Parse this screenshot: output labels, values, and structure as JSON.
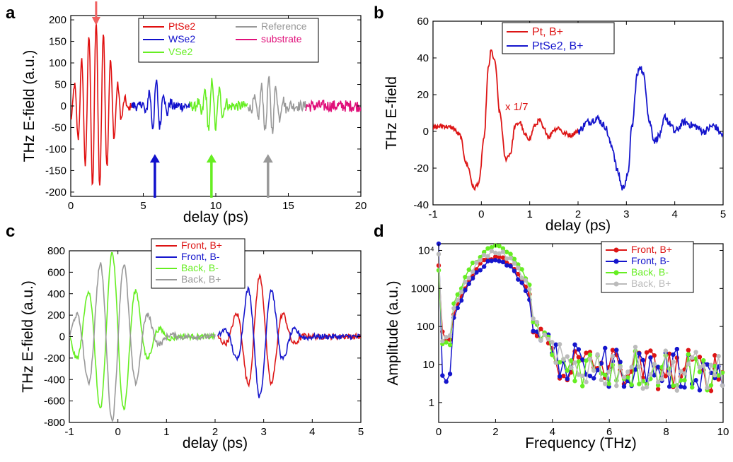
{
  "chart_data": [
    {
      "panel": "a",
      "type": "line",
      "xlabel": "delay (ps)",
      "ylabel": "THz E-field (a.u.)",
      "xlim": [
        0,
        20
      ],
      "ylim": [
        -210,
        210
      ],
      "xticks": [
        0,
        5,
        10,
        15,
        20
      ],
      "yticks": [
        200,
        150,
        100,
        50,
        0,
        -50,
        -100,
        -150,
        -200
      ],
      "legend_position": "top-right",
      "series": [
        {
          "name": "PtSe2",
          "color": "#e01010",
          "x_range": [
            0,
            4.2
          ],
          "center": 1.75,
          "amp": 195,
          "tau": 0.9,
          "period": 0.5,
          "noise": 8
        },
        {
          "name": "WSe2",
          "color": "#1010cc",
          "x_range": [
            4.2,
            8.2
          ],
          "center": 5.9,
          "amp": 55,
          "tau": 0.5,
          "period": 0.5,
          "noise": 12
        },
        {
          "name": "VSe2",
          "color": "#66ee22",
          "x_range": [
            8.2,
            12.2
          ],
          "center": 9.75,
          "amp": 60,
          "tau": 0.5,
          "period": 0.5,
          "noise": 12
        },
        {
          "name": "Reference",
          "color": "#999999",
          "x_range": [
            12.2,
            16.2
          ],
          "center": 13.65,
          "amp": 62,
          "tau": 0.6,
          "period": 0.5,
          "noise": 12
        },
        {
          "name": "substrate",
          "color": "#e0107a",
          "x_range": [
            16.2,
            20
          ],
          "center": 18,
          "amp": 0,
          "tau": 1,
          "period": 0.5,
          "noise": 14
        }
      ],
      "arrows": [
        {
          "x": 1.75,
          "direction": "down",
          "color": "#f06060"
        },
        {
          "x": 5.8,
          "direction": "up",
          "color": "#1010cc"
        },
        {
          "x": 9.7,
          "direction": "up",
          "color": "#66ee22"
        },
        {
          "x": 13.6,
          "direction": "up",
          "color": "#999999"
        }
      ]
    },
    {
      "panel": "b",
      "type": "line",
      "xlabel": "delay (ps)",
      "ylabel": "THz E-field",
      "xlim": [
        -1,
        5
      ],
      "ylim": [
        -40,
        60
      ],
      "xticks": [
        -1,
        0,
        1,
        2,
        3,
        4,
        5
      ],
      "yticks": [
        60,
        40,
        20,
        0,
        -20,
        -40
      ],
      "legend_position": "top-center",
      "annotation": "x 1/7",
      "series": [
        {
          "name": "Pt, B+",
          "color": "#dd1515",
          "x_range": [
            -1,
            2.0
          ],
          "points": [
            [
              -1,
              2
            ],
            [
              -0.8,
              3
            ],
            [
              -0.6,
              2
            ],
            [
              -0.45,
              -2
            ],
            [
              -0.3,
              -18
            ],
            [
              -0.15,
              -31
            ],
            [
              -0.05,
              -28
            ],
            [
              0.05,
              -5
            ],
            [
              0.15,
              35
            ],
            [
              0.2,
              44
            ],
            [
              0.28,
              38
            ],
            [
              0.38,
              10
            ],
            [
              0.5,
              -15
            ],
            [
              0.6,
              -12
            ],
            [
              0.7,
              3
            ],
            [
              0.8,
              5
            ],
            [
              0.9,
              -2
            ],
            [
              1.0,
              -4
            ],
            [
              1.1,
              3
            ],
            [
              1.2,
              6
            ],
            [
              1.3,
              1
            ],
            [
              1.4,
              -3
            ],
            [
              1.5,
              1
            ],
            [
              1.6,
              2
            ],
            [
              1.7,
              -1
            ],
            [
              1.85,
              -2
            ],
            [
              2.0,
              0
            ]
          ],
          "noise": 1.2
        },
        {
          "name": "PtSe2, B+",
          "color": "#1515cc",
          "x_range": [
            2.0,
            5
          ],
          "points": [
            [
              2.0,
              0
            ],
            [
              2.2,
              5
            ],
            [
              2.4,
              7
            ],
            [
              2.55,
              3
            ],
            [
              2.7,
              -8
            ],
            [
              2.82,
              -22
            ],
            [
              2.92,
              -31
            ],
            [
              3.02,
              -25
            ],
            [
              3.12,
              3
            ],
            [
              3.22,
              30
            ],
            [
              3.28,
              36
            ],
            [
              3.36,
              30
            ],
            [
              3.48,
              5
            ],
            [
              3.58,
              -5
            ],
            [
              3.7,
              -2
            ],
            [
              3.8,
              8
            ],
            [
              3.9,
              4
            ],
            [
              4.0,
              0
            ],
            [
              4.2,
              5
            ],
            [
              4.4,
              3
            ],
            [
              4.6,
              0
            ],
            [
              4.8,
              3
            ],
            [
              5.0,
              -2
            ]
          ],
          "noise": 2
        }
      ]
    },
    {
      "panel": "c",
      "type": "line",
      "xlabel": "delay (ps)",
      "ylabel": "THz E-field (a.u.)",
      "xlim": [
        -1,
        5
      ],
      "ylim": [
        -800,
        800
      ],
      "xticks": [
        -1,
        0,
        1,
        2,
        3,
        4,
        5
      ],
      "yticks": [
        800,
        600,
        400,
        200,
        0,
        -200,
        -400,
        -600,
        -800
      ],
      "legend_position": "top-center",
      "series": [
        {
          "name": "Front, B+",
          "color": "#dd1515",
          "x_range": [
            2.05,
            5
          ],
          "center": 2.92,
          "amp": 560,
          "tau": 0.35,
          "period": 0.5,
          "noise": 25,
          "phase": 0
        },
        {
          "name": "Front, B-",
          "color": "#1515cc",
          "x_range": [
            2.05,
            5
          ],
          "center": 2.92,
          "amp": -560,
          "tau": 0.35,
          "period": 0.5,
          "noise": 25,
          "phase": 0
        },
        {
          "name": "Back, B-",
          "color": "#66ee22",
          "x_range": [
            -1,
            2.0
          ],
          "center": -0.12,
          "amp": 780,
          "tau": 0.45,
          "period": 0.5,
          "noise": 25,
          "phase": 0
        },
        {
          "name": "Back, B+",
          "color": "#999999",
          "x_range": [
            -1,
            2.0
          ],
          "center": -0.12,
          "amp": -780,
          "tau": 0.45,
          "period": 0.5,
          "noise": 25,
          "phase": 0
        }
      ]
    },
    {
      "panel": "d",
      "type": "line",
      "scale": "log",
      "xlabel": "Frequency (THz)",
      "ylabel": "Amplitude (a.u.)",
      "xlim": [
        0,
        10
      ],
      "ylim": [
        0.3,
        15000
      ],
      "xticks": [
        0,
        2,
        4,
        6,
        8,
        10
      ],
      "yticks": [
        1,
        10,
        100,
        1000,
        10000
      ],
      "ytick_labels": [
        "1",
        "10",
        "100",
        "1000",
        "10⁴"
      ],
      "legend_position": "top-right",
      "series": [
        {
          "name": "Front, B+",
          "color": "#dd1515",
          "peak": 6500
        },
        {
          "name": "Front, B-",
          "color": "#1515cc",
          "peak": 5500
        },
        {
          "name": "Back, B-",
          "color": "#66ee22",
          "peak": 12000
        },
        {
          "name": "Back, B+",
          "color": "#bbbbbb",
          "peak": 9000
        }
      ]
    }
  ]
}
